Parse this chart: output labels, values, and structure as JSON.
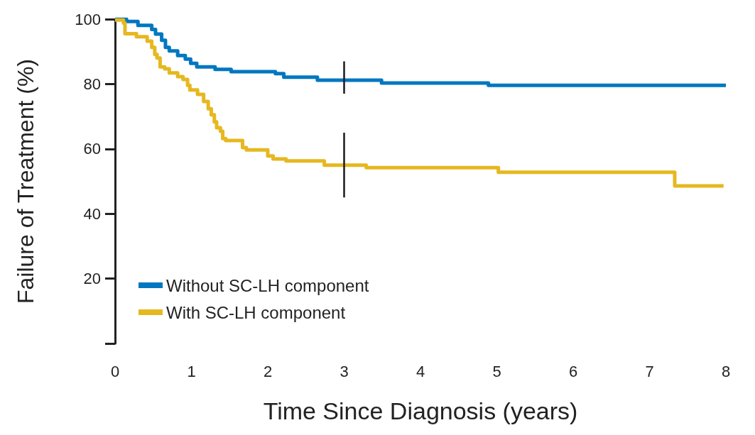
{
  "chart_data": {
    "type": "step",
    "xlabel": "Time Since Diagnosis (years)",
    "ylabel": "Failure of Treatment (%)",
    "xlim": [
      0,
      8
    ],
    "xticks": [
      0,
      1,
      2,
      3,
      4,
      5,
      6,
      7,
      8
    ],
    "ylim": [
      0,
      100
    ],
    "yticks": [
      {
        "value": 0,
        "label": null
      },
      20,
      40,
      60,
      80,
      100
    ],
    "grid": false,
    "legend": "bottom left",
    "marker": "none",
    "line_style": "solid",
    "series": [
      {
        "name": "Without SC-LH component",
        "color": "#0077c0",
        "x": [
          0,
          0.15,
          0.3,
          0.48,
          0.53,
          0.61,
          0.66,
          0.71,
          0.82,
          0.92,
          0.99,
          1.07,
          1.31,
          1.52,
          2.1,
          2.21,
          2.65,
          3.49,
          4.89,
          8
        ],
        "values": [
          100,
          99.3,
          98.1,
          96.8,
          95.4,
          93.5,
          91.3,
          90.2,
          88.8,
          87.7,
          86.4,
          85.3,
          84.5,
          83.8,
          83.2,
          82.1,
          81.2,
          80.3,
          79.6,
          79.6
        ]
      },
      {
        "name": "With SC-LH component",
        "color": "#e6b820",
        "x": [
          0,
          0.11,
          0.13,
          0.28,
          0.42,
          0.48,
          0.52,
          0.55,
          0.59,
          0.65,
          0.71,
          0.82,
          0.89,
          0.95,
          0.98,
          1.08,
          1.16,
          1.22,
          1.26,
          1.3,
          1.33,
          1.38,
          1.41,
          1.45,
          1.67,
          1.72,
          2.0,
          2.07,
          2.24,
          2.74,
          3.29,
          5.02,
          7.33,
          7.97
        ],
        "values": [
          99.7,
          98.8,
          95.5,
          94.6,
          93.2,
          91.3,
          89.1,
          88.0,
          85.3,
          84.7,
          83.4,
          82.3,
          81.4,
          79.6,
          78.2,
          76.8,
          74.6,
          72.4,
          70.5,
          68.3,
          66.5,
          65.4,
          63.2,
          62.6,
          60.4,
          59.7,
          57.8,
          56.9,
          56.3,
          55.0,
          54.2,
          52.8,
          48.6,
          48.6
        ]
      },
      {
        "type": "line",
        "color": "#1a1a1a",
        "x": [
          3,
          3
        ],
        "values": [
          77,
          87
        ]
      },
      {
        "type": "line",
        "color": "#1a1a1a",
        "x": [
          3,
          3
        ],
        "values": [
          45,
          65
        ]
      }
    ]
  }
}
